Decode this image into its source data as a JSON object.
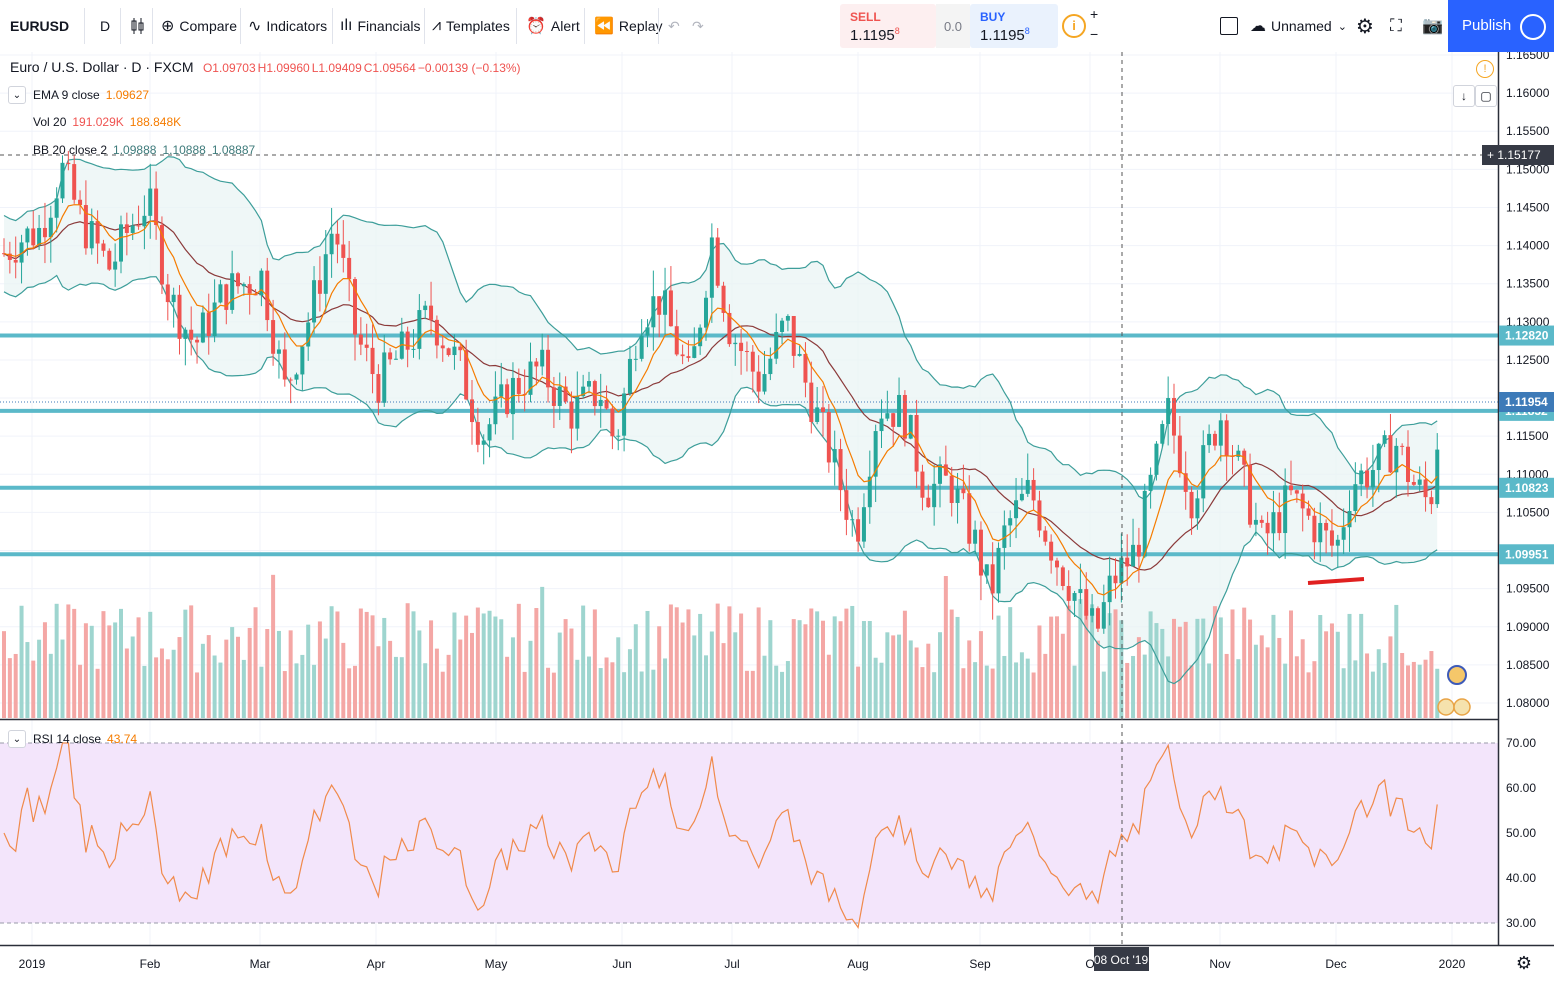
{
  "toolbar": {
    "symbol": "EURUSD",
    "interval": "D",
    "compare": "Compare",
    "indicators": "Indicators",
    "financials": "Financials",
    "templates": "Templates",
    "alert": "Alert",
    "replay": "Replay",
    "layout_name": "Unnamed",
    "publish": "Publish"
  },
  "trade": {
    "sell_label": "SELL",
    "sell_price": "1.1195",
    "sell_sup": "8",
    "spread": "0.0",
    "buy_label": "BUY",
    "buy_price": "1.1195",
    "buy_sup": "8",
    "plus": "+",
    "minus": "−"
  },
  "header": {
    "title": "Euro / U.S. Dollar · D · FXCM",
    "o": "O1.09703",
    "h": "H1.09960",
    "l": "L1.09409",
    "c": "C1.09564",
    "chg": "−0.00139 (−0.13%)"
  },
  "studies": {
    "ema_name": "EMA 9 close",
    "ema_val": "1.09627",
    "vol_name": "Vol 20",
    "vol_val1": "191.029K",
    "vol_val2": "188.848K",
    "bb_name": "BB 20 close 2",
    "bb_val1": "1.09888",
    "bb_val2": "1.10888",
    "bb_val3": "1.08887",
    "rsi_name": "RSI 14 close",
    "rsi_val": "43.74"
  },
  "crosshair": {
    "price": "1.15177",
    "date": "08 Oct '19"
  },
  "colors": {
    "up": "#26a69a",
    "down": "#ef5350",
    "ema": "#f57c00",
    "bb": "#3d9e9a",
    "bb_fill": "#e8f4f4",
    "level": "#5bb9c9",
    "rsi_line": "#f08a4b",
    "rsi_bg": "#f3e5fb",
    "publish": "#2962ff"
  },
  "chart_data": {
    "type": "candlestick",
    "price_axis_ticks": [
      "1.16500",
      "1.16000",
      "1.15500",
      "1.15000",
      "1.14500",
      "1.14000",
      "1.13500",
      "1.13000",
      "1.12500",
      "1.12000",
      "1.11500",
      "1.11000",
      "1.10500",
      "1.10000",
      "1.09500",
      "1.09000",
      "1.08500",
      "1.08000"
    ],
    "time_axis_ticks": [
      "2019",
      "Feb",
      "Mar",
      "Apr",
      "May",
      "Jun",
      "Jul",
      "Aug",
      "Sep",
      "O",
      "Nov",
      "Dec",
      "2020"
    ],
    "rsi_axis_ticks": [
      "70.00",
      "60.00",
      "50.00",
      "40.00",
      "30.00"
    ],
    "ylim": [
      1.079,
      1.1665
    ],
    "horizontal_levels": [
      {
        "price": 1.1282,
        "label": "1.12820"
      },
      {
        "price": 1.11832,
        "label": "1.11832"
      },
      {
        "price": 1.10823,
        "label": "1.10823"
      },
      {
        "price": 1.09951,
        "label": "1.09951"
      }
    ],
    "last_price_label": "1.11954",
    "closes_monthly_approx": [
      {
        "month": "Jan",
        "close": 1.146
      },
      {
        "month": "Feb",
        "close": 1.137
      },
      {
        "month": "Mar",
        "close": 1.122
      },
      {
        "month": "Apr",
        "close": 1.121
      },
      {
        "month": "May",
        "close": 1.117
      },
      {
        "month": "Jun",
        "close": 1.137
      },
      {
        "month": "Jul",
        "close": 1.115
      },
      {
        "month": "Aug",
        "close": 1.106
      },
      {
        "month": "Sep",
        "close": 1.093
      },
      {
        "month": "Oct",
        "close": 1.115
      },
      {
        "month": "Nov",
        "close": 1.101
      },
      {
        "month": "Dec",
        "close": 1.119
      }
    ]
  }
}
